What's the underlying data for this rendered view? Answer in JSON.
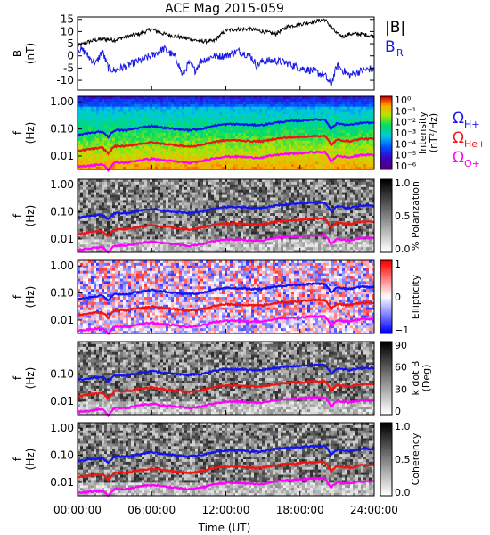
{
  "title": "ACE Mag 2015-059",
  "colors": {
    "b_total": "#000000",
    "b_r": "#1a1ae6",
    "h_plus": "#1414f0",
    "he_plus": "#f01414",
    "o_plus": "#ff00ff"
  },
  "chart_data": [
    {
      "type": "line",
      "title": "",
      "ylabel": "B\n(nT)",
      "ylim": [
        -14,
        16
      ],
      "yticks": [
        15,
        10,
        5,
        0,
        -5,
        -10
      ],
      "legend_placement": "right",
      "legend": [
        {
          "label": "|B|",
          "sub": "",
          "color": "b_total"
        },
        {
          "label": "B",
          "sub": "R",
          "color": "b_r"
        }
      ],
      "series": [
        {
          "name": "|B|",
          "color": "b_total",
          "x": [
            0,
            1,
            2,
            3,
            4,
            5,
            6,
            7,
            8,
            9,
            10,
            11,
            12,
            13,
            14,
            15,
            16,
            17,
            18,
            19,
            20,
            20.5,
            21,
            21.5,
            22,
            23,
            24
          ],
          "values": [
            4,
            6,
            7,
            6.5,
            8,
            9,
            11,
            9,
            8,
            7,
            6,
            6,
            10.5,
            11,
            11,
            10,
            9,
            12,
            13,
            14,
            15,
            12,
            9,
            8,
            9,
            9,
            8
          ]
        },
        {
          "name": "BR",
          "color": "b_r",
          "x": [
            0,
            0.5,
            1,
            1.5,
            2,
            2.5,
            3,
            4,
            5,
            6,
            7,
            8,
            8.5,
            9,
            9.5,
            10,
            11,
            12,
            13,
            14,
            14.5,
            15,
            16,
            17,
            18,
            19,
            20,
            20.5,
            21,
            22,
            23,
            24
          ],
          "values": [
            3,
            2,
            -1,
            -3,
            2,
            -5,
            -6,
            -4,
            -2,
            0,
            3,
            -1,
            -8,
            -3,
            -6,
            -2,
            0,
            0,
            2,
            0,
            -4,
            -2,
            -2,
            -3,
            -5,
            -6,
            -8,
            -12,
            -4,
            -8,
            -6,
            -5
          ]
        }
      ]
    },
    {
      "type": "heatmap",
      "ylabel": "f\n(Hz)",
      "ylog": true,
      "yticks": [
        "1.00",
        "0.10",
        "0.01"
      ],
      "colorbar": {
        "label": "Intensity",
        "unit": "(nT²/Hz)",
        "ticks": [
          "10⁰",
          "10⁻¹",
          "10⁻²",
          "10⁻³",
          "10⁻⁴",
          "10⁻⁵",
          "10⁻⁶"
        ],
        "scale": "rainbow"
      },
      "legend_placement": "right",
      "legend": [
        {
          "label": "Ω",
          "sub": "H+",
          "color": "h_plus"
        },
        {
          "label": "Ω",
          "sub": "He+",
          "color": "he_plus"
        },
        {
          "label": "Ω",
          "sub": "O+",
          "color": "o_plus"
        }
      ]
    },
    {
      "type": "heatmap",
      "ylabel": "f\n(Hz)",
      "ylog": true,
      "yticks": [
        "1.00",
        "0.10",
        "0.01"
      ],
      "colorbar": {
        "label": "% Polarization",
        "unit": "",
        "ticks": [
          "1.0",
          "0.5",
          "0.0"
        ],
        "scale": "gray"
      }
    },
    {
      "type": "heatmap",
      "ylabel": "f\n(Hz)",
      "ylog": true,
      "yticks": [
        "1.00",
        "0.10",
        "0.01"
      ],
      "colorbar": {
        "label": "Ellipticity",
        "unit": "",
        "ticks": [
          "1",
          "0",
          "−1"
        ],
        "scale": "bwr"
      }
    },
    {
      "type": "heatmap",
      "ylabel": "f\n(Hz)",
      "ylog": true,
      "yticks": [
        "0.10",
        "0.01"
      ],
      "colorbar": {
        "label": "k dot B",
        "unit": "(Deg)",
        "ticks": [
          "90",
          "60",
          "30",
          "0"
        ],
        "scale": "gray"
      }
    },
    {
      "type": "heatmap",
      "ylabel": "f\n(Hz)",
      "ylog": true,
      "yticks": [
        "1.00",
        "0.10",
        "0.01"
      ],
      "colorbar": {
        "label": "Coherency",
        "unit": "",
        "ticks": [
          "1.0",
          "0.5",
          "0.0"
        ],
        "scale": "gray"
      }
    }
  ],
  "gyrofrequency_lines": {
    "x": [
      0,
      1,
      2,
      2.5,
      3,
      4,
      5,
      6,
      7,
      8,
      9,
      10,
      11,
      12,
      13,
      14,
      15,
      16,
      17,
      18,
      19,
      20,
      20.5,
      21,
      22,
      23,
      24
    ],
    "h_plus": [
      0.06,
      0.07,
      0.08,
      0.05,
      0.09,
      0.09,
      0.11,
      0.13,
      0.11,
      0.1,
      0.09,
      0.1,
      0.13,
      0.15,
      0.15,
      0.14,
      0.14,
      0.17,
      0.19,
      0.2,
      0.22,
      0.22,
      0.1,
      0.16,
      0.14,
      0.17,
      0.17
    ],
    "he_plus": [
      0.015,
      0.018,
      0.02,
      0.012,
      0.023,
      0.023,
      0.028,
      0.032,
      0.028,
      0.025,
      0.022,
      0.025,
      0.033,
      0.038,
      0.038,
      0.035,
      0.035,
      0.043,
      0.048,
      0.05,
      0.055,
      0.055,
      0.025,
      0.04,
      0.035,
      0.043,
      0.043
    ],
    "o_plus": [
      0.004,
      0.0045,
      0.005,
      0.003,
      0.0057,
      0.0057,
      0.007,
      0.008,
      0.007,
      0.0063,
      0.0055,
      0.0063,
      0.0083,
      0.0095,
      0.0095,
      0.0088,
      0.0088,
      0.011,
      0.012,
      0.0125,
      0.0138,
      0.0138,
      0.0063,
      0.01,
      0.0088,
      0.011,
      0.011
    ]
  },
  "x_axis": {
    "label": "Time (UT)",
    "range_hours": [
      0,
      24
    ],
    "ticks": [
      "00:00:00",
      "06:00:00",
      "12:00:00",
      "18:00:00",
      "24:00:00"
    ]
  }
}
